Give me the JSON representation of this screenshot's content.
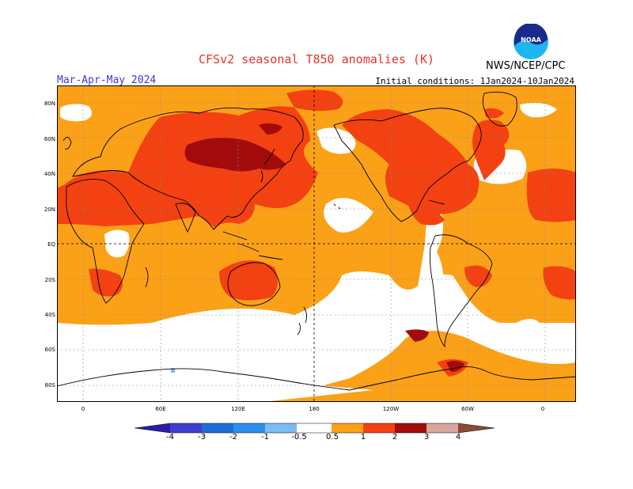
{
  "header": {
    "title": "CFSv2 seasonal T850 anomalies (K)",
    "period": "Mar-Apr-May 2024",
    "initial_conditions": "Initial conditions: 1Jan2024-10Jan2024",
    "agency": "NWS/NCEP/CPC",
    "logo_text": "NOAA"
  },
  "map": {
    "lat_labels": [
      "80N",
      "60N",
      "40N",
      "20N",
      "EQ",
      "20S",
      "40S",
      "60S",
      "80S"
    ],
    "lon_labels": [
      "0",
      "60E",
      "120E",
      "180",
      "120W",
      "60W",
      "0"
    ],
    "colors": {
      "ocean_neutral": "#ffffff",
      "c05_1": "#fba118",
      "c1_2": "#f34112",
      "c2_3": "#a20b0b",
      "c3_4": "#d6a79a",
      "cneg05": "#7dbbf5",
      "cneg1": "#2e8ef0",
      "cneg2": "#1f6ed8",
      "cneg3": "#3f3fce",
      "cneg4": "#2b1da8",
      "c4plus": "#8a4a36"
    }
  },
  "colorbar": {
    "labels": [
      "-4",
      "-3",
      "-2",
      "-1",
      "-0.5",
      "0.5",
      "1",
      "2",
      "3",
      "4"
    ]
  }
}
